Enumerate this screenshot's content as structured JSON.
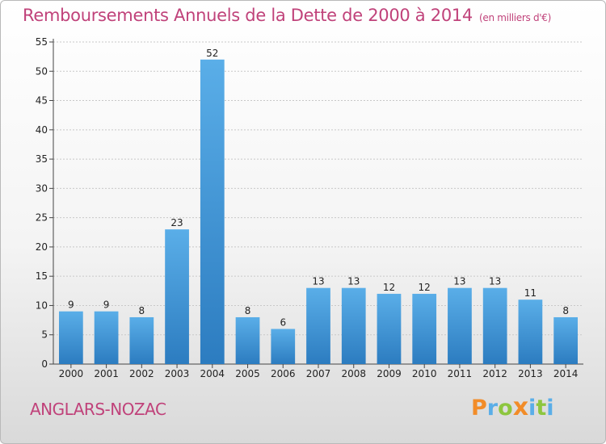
{
  "header": {
    "title": "Remboursements Annuels de la Dette de 2000 à 2014",
    "subtitle": "(en milliers d'€)"
  },
  "footer": {
    "commune": "ANGLARS-NOZAC",
    "logo_letters": [
      "P",
      "r",
      "o",
      "x",
      "i",
      "t",
      "i"
    ]
  },
  "colors": {
    "title": "#c0427a",
    "bar_top": "#5aaee8",
    "bar_bottom": "#2c7cc0",
    "grid": "#c8c8c8",
    "logo": [
      "#f28c28",
      "#5aaee8",
      "#8dc63f",
      "#f28c28",
      "#5aaee8",
      "#8dc63f",
      "#5aaee8"
    ]
  },
  "chart_data": {
    "type": "bar",
    "categories": [
      "2000",
      "2001",
      "2002",
      "2003",
      "2004",
      "2005",
      "2006",
      "2007",
      "2008",
      "2009",
      "2010",
      "2011",
      "2012",
      "2013",
      "2014"
    ],
    "values": [
      9,
      9,
      8,
      23,
      52,
      8,
      6,
      13,
      13,
      12,
      12,
      13,
      13,
      11,
      8
    ],
    "data_labels": [
      "9",
      "9",
      "8",
      "23",
      "52",
      "8",
      "6",
      "13",
      "13",
      "12",
      "12",
      "13",
      "13",
      "11",
      "8"
    ],
    "title": "Remboursements Annuels de la Dette de 2000 à 2014",
    "xlabel": "",
    "ylabel": "",
    "ylim": [
      0,
      55
    ],
    "yticks": [
      0,
      5,
      10,
      15,
      20,
      25,
      30,
      35,
      40,
      45,
      50,
      55
    ],
    "grid": true,
    "legend": "none"
  }
}
